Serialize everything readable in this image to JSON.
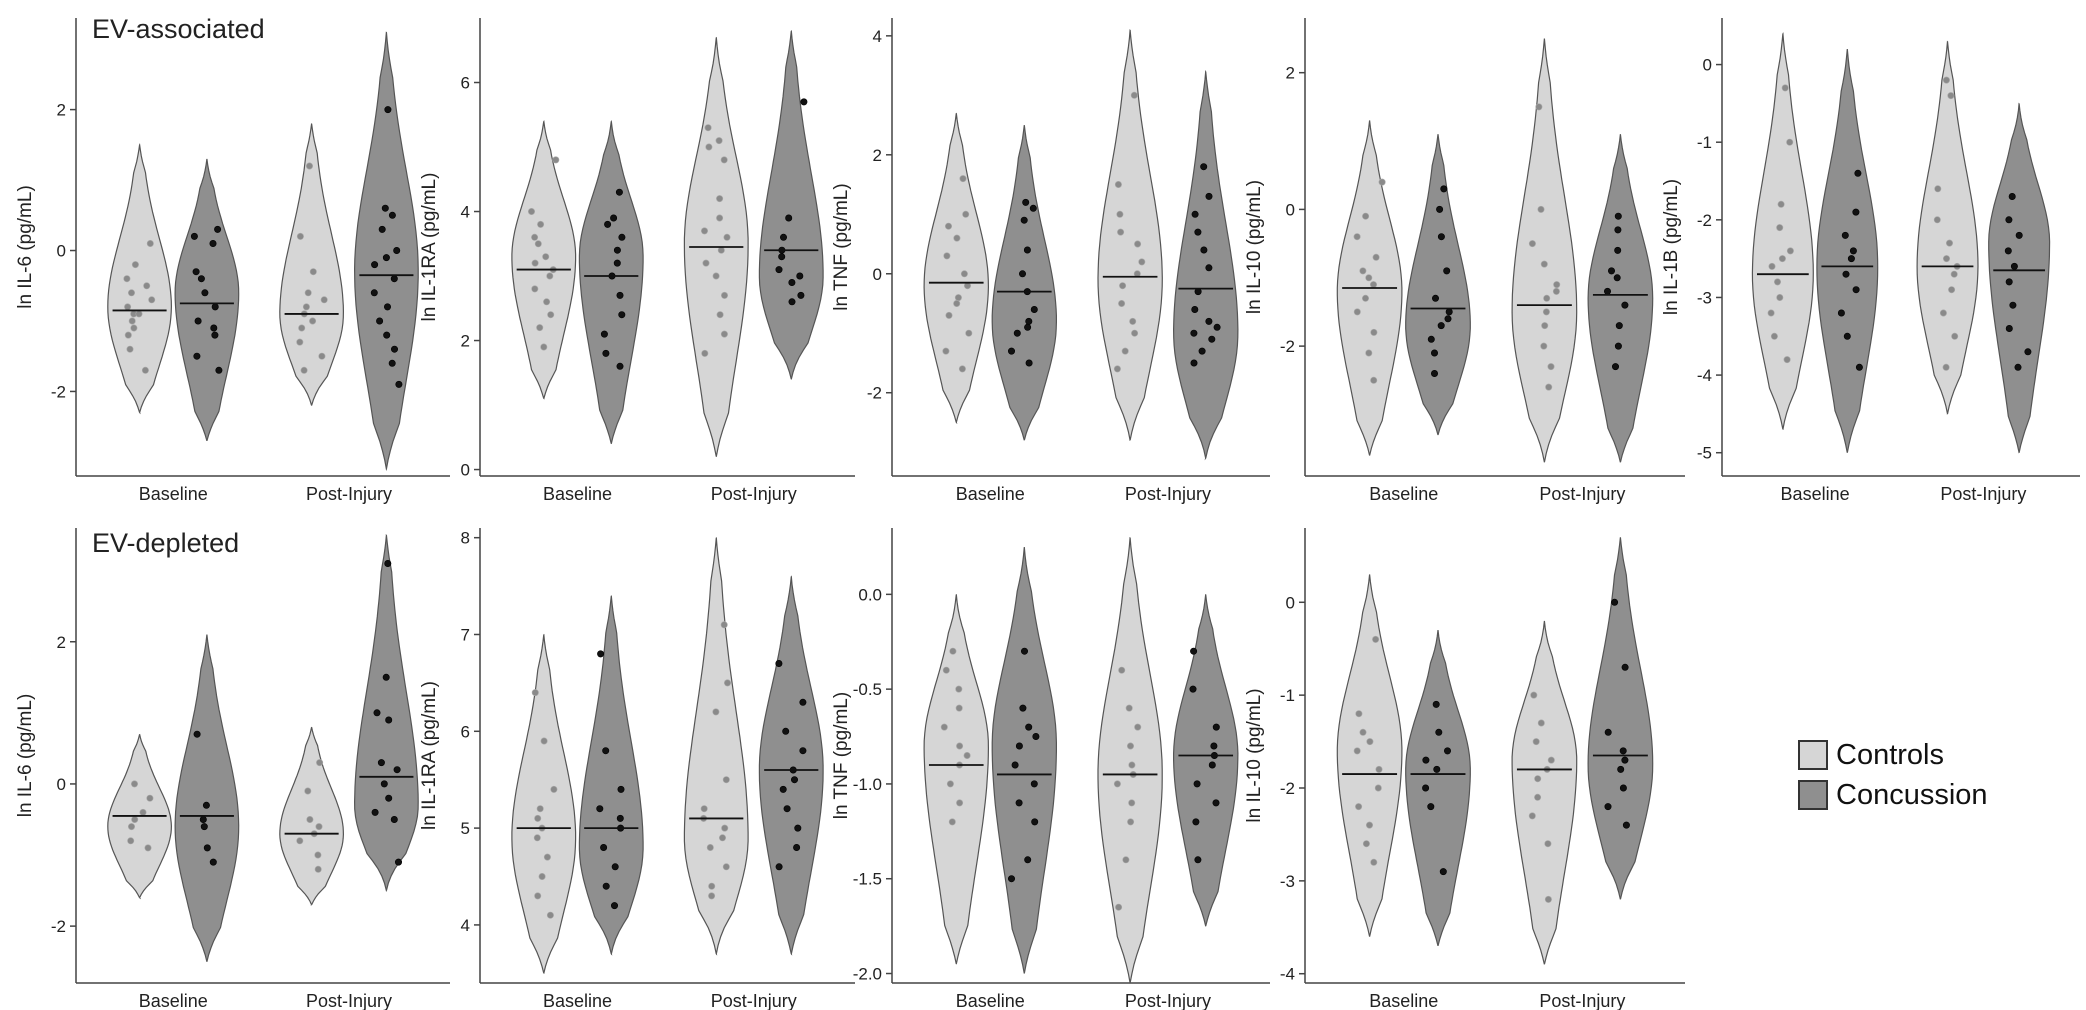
{
  "colors": {
    "controls": "#d6d6d6",
    "concussion": "#8f8f8f",
    "axis": "#444444",
    "median": "#111111"
  },
  "row_labels": {
    "top": "EV-associated",
    "bottom": "EV-depleted"
  },
  "legend": {
    "controls": {
      "label": "Controls",
      "color": "#d6d6d6"
    },
    "concussion": {
      "label": "Concussion",
      "color": "#8f8f8f"
    }
  },
  "chart_data": [
    {
      "type": "violin",
      "row": "EV-associated",
      "ylabel": "ln IL-6 (pg/mL)",
      "categories": [
        "Baseline",
        "Post-Injury"
      ],
      "ylim": [
        -3.2,
        3.3
      ],
      "yticks": [
        -2,
        0,
        2
      ],
      "ytick_labels": [
        "-2",
        "0",
        "2"
      ],
      "groups": [
        {
          "category": "Baseline",
          "series": "Controls",
          "range": [
            -2.3,
            1.5
          ],
          "median": -0.85,
          "mode": -0.8,
          "values": [
            -0.4,
            -0.6,
            -0.8,
            -0.9,
            -1.0,
            -1.2,
            -0.7,
            -1.4,
            -0.2,
            0.1,
            -1.7,
            -0.5,
            -0.9,
            -1.1
          ]
        },
        {
          "category": "Baseline",
          "series": "Concussion",
          "range": [
            -2.7,
            1.3
          ],
          "median": -0.75,
          "mode": -0.6,
          "values": [
            0.3,
            0.1,
            -0.3,
            -0.6,
            -0.8,
            -1.0,
            -1.2,
            -1.5,
            -1.7,
            -0.4,
            -1.1,
            0.2
          ]
        },
        {
          "category": "Post-Injury",
          "series": "Controls",
          "range": [
            -2.2,
            1.8
          ],
          "median": -0.9,
          "mode": -0.9,
          "values": [
            0.2,
            -0.3,
            -0.6,
            -0.8,
            -1.0,
            -1.1,
            -1.3,
            -1.5,
            -1.7,
            1.2,
            -0.7,
            -0.9
          ]
        },
        {
          "category": "Post-Injury",
          "series": "Concussion",
          "range": [
            -3.1,
            3.1
          ],
          "median": -0.35,
          "mode": -0.3,
          "values": [
            2.0,
            0.6,
            0.3,
            0.0,
            -0.2,
            -0.4,
            -0.6,
            -0.8,
            -1.0,
            -1.2,
            -1.4,
            -1.6,
            -1.9,
            -0.1,
            0.5
          ]
        }
      ]
    },
    {
      "type": "violin",
      "row": "EV-associated",
      "ylabel": "ln IL-1RA (pg/mL)",
      "categories": [
        "Baseline",
        "Post-Injury"
      ],
      "ylim": [
        -0.1,
        7.0
      ],
      "yticks": [
        0,
        2,
        4,
        6
      ],
      "ytick_labels": [
        "0",
        "2",
        "4",
        "6"
      ],
      "groups": [
        {
          "category": "Baseline",
          "series": "Controls",
          "range": [
            1.1,
            5.4
          ],
          "median": 3.1,
          "mode": 3.3,
          "values": [
            4.8,
            4.0,
            3.8,
            3.5,
            3.3,
            3.1,
            3.0,
            2.8,
            2.6,
            2.4,
            2.2,
            1.9,
            3.6,
            3.2
          ]
        },
        {
          "category": "Baseline",
          "series": "Concussion",
          "range": [
            0.4,
            5.4
          ],
          "median": 3.0,
          "mode": 3.3,
          "values": [
            4.3,
            3.9,
            3.6,
            3.4,
            3.2,
            3.0,
            2.7,
            2.4,
            2.1,
            1.8,
            1.6,
            3.8
          ]
        },
        {
          "category": "Post-Injury",
          "series": "Controls",
          "range": [
            0.2,
            6.7
          ],
          "median": 3.45,
          "mode": 3.5,
          "values": [
            5.3,
            5.1,
            4.8,
            4.2,
            3.9,
            3.6,
            3.4,
            3.2,
            3.0,
            2.7,
            2.4,
            2.1,
            1.8,
            5.0,
            3.7
          ]
        },
        {
          "category": "Post-Injury",
          "series": "Concussion",
          "range": [
            1.4,
            6.8
          ],
          "median": 3.4,
          "mode": 3.0,
          "values": [
            5.7,
            3.9,
            3.6,
            3.4,
            3.1,
            2.9,
            2.7,
            2.6,
            3.3,
            3.0
          ]
        }
      ]
    },
    {
      "type": "violin",
      "row": "EV-associated",
      "ylabel": "ln TNF (pg/mL)",
      "categories": [
        "Baseline",
        "Post-Injury"
      ],
      "ylim": [
        -3.4,
        4.3
      ],
      "yticks": [
        -2,
        0,
        2,
        4
      ],
      "ytick_labels": [
        "-2",
        "0",
        "2",
        "4"
      ],
      "groups": [
        {
          "category": "Baseline",
          "series": "Controls",
          "range": [
            -2.5,
            2.7
          ],
          "median": -0.15,
          "mode": -0.2,
          "values": [
            1.6,
            1.0,
            0.6,
            0.3,
            0.0,
            -0.2,
            -0.4,
            -0.7,
            -1.0,
            -1.3,
            -1.6,
            0.8,
            -0.5
          ]
        },
        {
          "category": "Baseline",
          "series": "Concussion",
          "range": [
            -2.8,
            2.5
          ],
          "median": -0.3,
          "mode": -0.8,
          "values": [
            1.2,
            1.1,
            0.9,
            0.4,
            0.0,
            -0.3,
            -0.6,
            -0.8,
            -1.0,
            -1.3,
            -1.5,
            -0.9
          ]
        },
        {
          "category": "Post-Injury",
          "series": "Controls",
          "range": [
            -2.8,
            4.1
          ],
          "median": -0.05,
          "mode": -0.1,
          "values": [
            3.0,
            1.5,
            1.0,
            0.5,
            0.2,
            0.0,
            -0.2,
            -0.5,
            -0.8,
            -1.0,
            -1.3,
            -1.6,
            0.7
          ]
        },
        {
          "category": "Post-Injury",
          "series": "Concussion",
          "range": [
            -3.1,
            3.4
          ],
          "median": -0.25,
          "mode": -1.0,
          "values": [
            1.8,
            1.3,
            1.0,
            0.7,
            0.4,
            0.1,
            -0.3,
            -0.6,
            -0.9,
            -1.1,
            -1.3,
            -1.5,
            -1.0,
            -0.8
          ]
        }
      ]
    },
    {
      "type": "violin",
      "row": "EV-associated",
      "ylabel": "ln IL-10 (pg/mL)",
      "categories": [
        "Baseline",
        "Post-Injury"
      ],
      "ylim": [
        -3.9,
        2.8
      ],
      "yticks": [
        -2,
        0,
        2
      ],
      "ytick_labels": [
        "-2",
        "0",
        "2"
      ],
      "groups": [
        {
          "category": "Baseline",
          "series": "Controls",
          "range": [
            -3.6,
            1.3
          ],
          "median": -1.15,
          "mode": -1.2,
          "values": [
            0.4,
            -0.1,
            -0.4,
            -0.7,
            -0.9,
            -1.1,
            -1.3,
            -1.5,
            -1.8,
            -2.1,
            -2.5,
            -1.0
          ]
        },
        {
          "category": "Baseline",
          "series": "Concussion",
          "range": [
            -3.3,
            1.1
          ],
          "median": -1.45,
          "mode": -1.7,
          "values": [
            0.3,
            0.0,
            -0.4,
            -0.9,
            -1.3,
            -1.5,
            -1.7,
            -1.9,
            -2.1,
            -2.4,
            -1.6
          ]
        },
        {
          "category": "Post-Injury",
          "series": "Controls",
          "range": [
            -3.7,
            2.5
          ],
          "median": -1.4,
          "mode": -1.5,
          "values": [
            1.5,
            0.0,
            -0.5,
            -0.8,
            -1.1,
            -1.3,
            -1.5,
            -1.7,
            -2.0,
            -2.3,
            -2.6,
            -1.2
          ]
        },
        {
          "category": "Post-Injury",
          "series": "Concussion",
          "range": [
            -3.7,
            1.1
          ],
          "median": -1.25,
          "mode": -1.3,
          "values": [
            -0.1,
            -0.3,
            -0.6,
            -0.9,
            -1.2,
            -1.4,
            -1.7,
            -2.0,
            -2.3,
            -1.0
          ]
        }
      ]
    },
    {
      "type": "violin",
      "row": "EV-associated",
      "ylabel": "ln IL-1B (pg/mL)",
      "categories": [
        "Baseline",
        "Post-Injury"
      ],
      "ylim": [
        -5.3,
        0.6
      ],
      "yticks": [
        -5,
        -4,
        -3,
        -2,
        -1,
        0
      ],
      "ytick_labels": [
        "-5",
        "-4",
        "-3",
        "-2",
        "-1",
        "0"
      ],
      "groups": [
        {
          "category": "Baseline",
          "series": "Controls",
          "range": [
            -4.7,
            0.4
          ],
          "median": -2.7,
          "mode": -2.7,
          "values": [
            -0.3,
            -1.0,
            -1.8,
            -2.1,
            -2.4,
            -2.6,
            -2.8,
            -3.0,
            -3.2,
            -3.5,
            -3.8,
            -2.5
          ]
        },
        {
          "category": "Baseline",
          "series": "Concussion",
          "range": [
            -5.0,
            0.2
          ],
          "median": -2.6,
          "mode": -2.6,
          "values": [
            -1.4,
            -1.9,
            -2.2,
            -2.5,
            -2.7,
            -2.9,
            -3.2,
            -3.5,
            -3.9,
            -2.4
          ]
        },
        {
          "category": "Post-Injury",
          "series": "Controls",
          "range": [
            -4.5,
            0.3
          ],
          "median": -2.6,
          "mode": -2.6,
          "values": [
            -0.2,
            -0.4,
            -1.6,
            -2.0,
            -2.3,
            -2.5,
            -2.7,
            -2.9,
            -3.2,
            -3.5,
            -3.9,
            -2.6
          ]
        },
        {
          "category": "Post-Injury",
          "series": "Concussion",
          "range": [
            -5.0,
            -0.5
          ],
          "median": -2.65,
          "mode": -2.3,
          "values": [
            -1.7,
            -2.0,
            -2.2,
            -2.4,
            -2.6,
            -2.8,
            -3.1,
            -3.4,
            -3.7,
            -3.9
          ]
        }
      ]
    },
    {
      "type": "violin",
      "row": "EV-depleted",
      "ylabel": "ln IL-6 (pg/mL)",
      "categories": [
        "Baseline",
        "Post-Injury"
      ],
      "ylim": [
        -2.8,
        3.6
      ],
      "yticks": [
        -2,
        0,
        2
      ],
      "ytick_labels": [
        "-2",
        "0",
        "2"
      ],
      "groups": [
        {
          "category": "Baseline",
          "series": "Controls",
          "range": [
            -1.6,
            0.7
          ],
          "median": -0.45,
          "mode": -0.6,
          "values": [
            0.0,
            -0.2,
            -0.4,
            -0.5,
            -0.8,
            -0.9,
            -0.6
          ]
        },
        {
          "category": "Baseline",
          "series": "Concussion",
          "range": [
            -2.5,
            2.1
          ],
          "median": -0.45,
          "mode": -0.6,
          "values": [
            0.7,
            -0.3,
            -0.6,
            -0.9,
            -1.1,
            -0.5
          ]
        },
        {
          "category": "Post-Injury",
          "series": "Controls",
          "range": [
            -1.7,
            0.8
          ],
          "median": -0.7,
          "mode": -0.7,
          "values": [
            0.3,
            -0.1,
            -0.5,
            -0.7,
            -0.8,
            -1.0,
            -1.2,
            -0.6
          ]
        },
        {
          "category": "Post-Injury",
          "series": "Concussion",
          "range": [
            -1.5,
            3.5
          ],
          "median": 0.1,
          "mode": -0.3,
          "values": [
            3.1,
            1.5,
            1.0,
            0.9,
            0.3,
            0.0,
            -0.2,
            -0.4,
            -0.5,
            -1.1,
            0.2
          ]
        }
      ]
    },
    {
      "type": "violin",
      "row": "EV-depleted",
      "ylabel": "ln IL-1RA (pg/mL)",
      "categories": [
        "Baseline",
        "Post-Injury"
      ],
      "ylim": [
        3.4,
        8.1
      ],
      "yticks": [
        4,
        5,
        6,
        7,
        8
      ],
      "ytick_labels": [
        "4",
        "5",
        "6",
        "7",
        "8"
      ],
      "groups": [
        {
          "category": "Baseline",
          "series": "Controls",
          "range": [
            3.5,
            7.0
          ],
          "median": 5.0,
          "mode": 4.9,
          "values": [
            6.4,
            5.9,
            5.4,
            5.2,
            5.0,
            4.9,
            4.7,
            4.5,
            4.3,
            4.1,
            5.1
          ]
        },
        {
          "category": "Baseline",
          "series": "Concussion",
          "range": [
            3.7,
            7.4
          ],
          "median": 5.0,
          "mode": 4.8,
          "values": [
            6.8,
            5.8,
            5.4,
            5.2,
            5.0,
            4.8,
            4.6,
            4.4,
            4.2,
            5.1
          ]
        },
        {
          "category": "Post-Injury",
          "series": "Controls",
          "range": [
            3.7,
            8.0
          ],
          "median": 5.1,
          "mode": 4.9,
          "values": [
            7.1,
            6.5,
            6.2,
            5.5,
            5.2,
            5.1,
            5.0,
            4.8,
            4.6,
            4.4,
            4.3,
            4.9
          ]
        },
        {
          "category": "Post-Injury",
          "series": "Concussion",
          "range": [
            3.7,
            7.6
          ],
          "median": 5.6,
          "mode": 5.6,
          "values": [
            6.7,
            6.3,
            6.0,
            5.8,
            5.6,
            5.4,
            5.2,
            5.0,
            4.8,
            4.6,
            5.5
          ]
        }
      ]
    },
    {
      "type": "violin",
      "row": "EV-depleted",
      "ylabel": "ln TNF (pg/mL)",
      "categories": [
        "Baseline",
        "Post-Injury"
      ],
      "ylim": [
        -2.05,
        0.35
      ],
      "yticks": [
        -2.0,
        -1.5,
        -1.0,
        -0.5,
        0.0
      ],
      "ytick_labels": [
        "-2.0",
        "-1.5",
        "-1.0",
        "-0.5",
        "0.0"
      ],
      "groups": [
        {
          "category": "Baseline",
          "series": "Controls",
          "range": [
            -1.95,
            0.0
          ],
          "median": -0.9,
          "mode": -0.8,
          "values": [
            -0.3,
            -0.5,
            -0.6,
            -0.7,
            -0.8,
            -0.9,
            -1.0,
            -1.1,
            -1.2,
            -0.4,
            -0.85
          ]
        },
        {
          "category": "Baseline",
          "series": "Concussion",
          "range": [
            -2.0,
            0.25
          ],
          "median": -0.95,
          "mode": -0.8,
          "values": [
            -0.3,
            -0.6,
            -0.7,
            -0.8,
            -0.9,
            -1.0,
            -1.1,
            -1.2,
            -1.4,
            -1.5,
            -0.75
          ]
        },
        {
          "category": "Post-Injury",
          "series": "Controls",
          "range": [
            -2.05,
            0.3
          ],
          "median": -0.95,
          "mode": -0.95,
          "values": [
            -0.4,
            -0.6,
            -0.7,
            -0.8,
            -0.9,
            -1.0,
            -1.1,
            -1.2,
            -1.4,
            -1.65,
            -0.95
          ]
        },
        {
          "category": "Post-Injury",
          "series": "Concussion",
          "range": [
            -1.75,
            0.0
          ],
          "median": -0.85,
          "mode": -0.85,
          "values": [
            -0.3,
            -0.5,
            -0.7,
            -0.8,
            -0.9,
            -1.0,
            -1.1,
            -1.2,
            -1.4,
            -0.85
          ]
        }
      ]
    },
    {
      "type": "violin",
      "row": "EV-depleted",
      "ylabel": "ln IL-10 (pg/mL)",
      "categories": [
        "Baseline",
        "Post-Injury"
      ],
      "ylim": [
        -4.1,
        0.8
      ],
      "yticks": [
        -4,
        -3,
        -2,
        -1,
        0
      ],
      "ytick_labels": [
        "-4",
        "-3",
        "-2",
        "-1",
        "0"
      ],
      "groups": [
        {
          "category": "Baseline",
          "series": "Controls",
          "range": [
            -3.6,
            0.3
          ],
          "median": -1.85,
          "mode": -1.6,
          "values": [
            -0.4,
            -1.2,
            -1.4,
            -1.6,
            -1.8,
            -2.0,
            -2.2,
            -2.4,
            -2.6,
            -2.8,
            -1.5
          ]
        },
        {
          "category": "Baseline",
          "series": "Concussion",
          "range": [
            -3.7,
            -0.3
          ],
          "median": -1.85,
          "mode": -1.8,
          "values": [
            -1.1,
            -1.4,
            -1.6,
            -1.8,
            -2.0,
            -2.2,
            -2.9,
            -1.7
          ]
        },
        {
          "category": "Post-Injury",
          "series": "Controls",
          "range": [
            -3.9,
            -0.2
          ],
          "median": -1.8,
          "mode": -1.7,
          "values": [
            -1.0,
            -1.3,
            -1.5,
            -1.7,
            -1.9,
            -2.1,
            -2.3,
            -2.6,
            -3.2,
            -1.8
          ]
        },
        {
          "category": "Post-Injury",
          "series": "Concussion",
          "range": [
            -3.2,
            0.7
          ],
          "median": -1.65,
          "mode": -1.75,
          "values": [
            0.0,
            -0.7,
            -1.4,
            -1.6,
            -1.8,
            -2.0,
            -2.2,
            -2.4,
            -1.7
          ]
        }
      ]
    }
  ]
}
